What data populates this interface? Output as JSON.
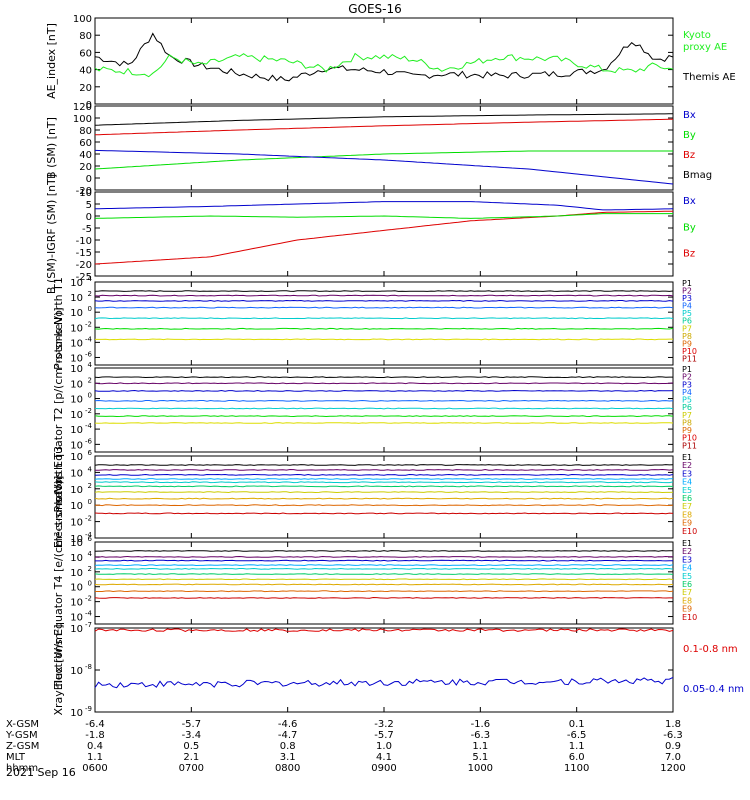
{
  "title": "GOES-16",
  "date": "2021 Sep 16",
  "colors": {
    "black": "#000000",
    "red": "#dd0000",
    "green": "#00dd00",
    "blue": "#0000cc",
    "lime": "#33dd33",
    "proxy": "#22ee22"
  },
  "chart_data": [
    {
      "type": "line",
      "id": "ae",
      "ylabel": "AE_index [nT]",
      "ylim": [
        0,
        100
      ],
      "ticks": [
        0,
        20,
        40,
        60,
        80,
        100
      ],
      "tick_labels": [
        "0",
        "20",
        "40",
        "60",
        "80",
        "100"
      ],
      "legend": [
        {
          "label": "Kyoto",
          "color": "#22ee22"
        },
        {
          "label": "proxy AE",
          "color": "#22ee22"
        },
        {
          "label": "Themis AE",
          "color": "#000000"
        }
      ],
      "x": [
        0,
        0.06,
        0.1,
        0.13,
        0.18,
        0.25,
        0.33,
        0.4,
        0.45,
        0.5,
        0.55,
        0.6,
        0.7,
        0.8,
        0.88,
        0.93,
        0.97,
        1.0
      ],
      "series": [
        {
          "name": "Themis AE",
          "color": "#000000",
          "values": [
            55,
            45,
            82,
            55,
            45,
            35,
            28,
            42,
            40,
            38,
            32,
            35,
            33,
            35,
            40,
            75,
            52,
            55
          ]
        },
        {
          "name": "Kyoto proxy AE",
          "color": "#22ee22",
          "values": [
            40,
            38,
            35,
            55,
            45,
            55,
            50,
            40,
            55,
            55,
            52,
            40,
            55,
            52,
            40,
            38,
            45,
            40
          ]
        }
      ]
    },
    {
      "type": "line",
      "id": "bsm",
      "ylabel": "B (SM) [nT]",
      "ylim": [
        -20,
        120
      ],
      "ticks": [
        -20,
        0,
        20,
        40,
        60,
        80,
        100,
        120
      ],
      "tick_labels": [
        "-20",
        "0",
        "20",
        "40",
        "60",
        "80",
        "100",
        "120"
      ],
      "legend": [
        {
          "label": "Bx",
          "color": "#0000cc"
        },
        {
          "label": "By",
          "color": "#00dd00"
        },
        {
          "label": "Bz",
          "color": "#dd0000"
        },
        {
          "label": "Bmag",
          "color": "#000000"
        }
      ],
      "x": [
        0,
        0.25,
        0.5,
        0.75,
        1.0
      ],
      "series": [
        {
          "name": "Bmag",
          "color": "#000000",
          "values": [
            88,
            96,
            102,
            105,
            107
          ]
        },
        {
          "name": "Bz",
          "color": "#dd0000",
          "values": [
            72,
            80,
            87,
            93,
            98
          ]
        },
        {
          "name": "By",
          "color": "#00dd00",
          "values": [
            15,
            30,
            40,
            45,
            45
          ]
        },
        {
          "name": "Bx",
          "color": "#0000cc",
          "values": [
            46,
            40,
            30,
            15,
            -10
          ]
        }
      ]
    },
    {
      "type": "line",
      "id": "bigrf",
      "ylabel": "B (SM)-IGRF (SM) [nT]",
      "ylim": [
        -25,
        10
      ],
      "ticks": [
        -25,
        -20,
        -15,
        -10,
        -5,
        0,
        5,
        10
      ],
      "tick_labels": [
        "-25",
        "-20",
        "-15",
        "-10",
        "-5",
        "0",
        "5",
        "10"
      ],
      "legend": [
        {
          "label": "Bx",
          "color": "#0000cc"
        },
        {
          "label": "By",
          "color": "#00dd00"
        },
        {
          "label": "Bz",
          "color": "#dd0000"
        }
      ],
      "x": [
        0,
        0.2,
        0.35,
        0.5,
        0.65,
        0.8,
        0.88,
        1.0
      ],
      "series": [
        {
          "name": "Bz",
          "color": "#dd0000",
          "values": [
            -20,
            -17,
            -10,
            -6,
            -2,
            0,
            1.5,
            2
          ]
        },
        {
          "name": "By",
          "color": "#00dd00",
          "values": [
            -1,
            0,
            -0.5,
            0,
            -1,
            0,
            1,
            1
          ]
        },
        {
          "name": "Bx",
          "color": "#0000cc",
          "values": [
            3,
            4,
            5,
            6,
            6,
            4.5,
            2.5,
            3
          ]
        }
      ]
    },
    {
      "type": "line",
      "id": "pn",
      "log": true,
      "ylabel": "Protons North T1",
      "unit": "",
      "ylim_exp": [
        -7,
        4
      ],
      "tick_exps": [
        -6,
        -4,
        -2,
        0,
        2,
        4
      ],
      "tick_labels": [
        "10",
        "10",
        "10",
        "10",
        "10",
        "10"
      ],
      "tick_sups": [
        "-6",
        "-4",
        "-2",
        "0",
        "2",
        "4"
      ],
      "legend": [
        {
          "label": "P1",
          "color": "#000000"
        },
        {
          "label": "P2",
          "color": "#660066"
        },
        {
          "label": "P3",
          "color": "#0000cc"
        },
        {
          "label": "P4",
          "color": "#1166ff"
        },
        {
          "label": "P5",
          "color": "#00cccc"
        },
        {
          "label": "P6",
          "color": "#00cc99"
        },
        {
          "label": "P7",
          "color": "#cccc00"
        },
        {
          "label": "P8",
          "color": "#ccaa00"
        },
        {
          "label": "P9",
          "color": "#dd6600"
        },
        {
          "label": "P10",
          "color": "#dd0000"
        },
        {
          "label": "P11",
          "color": "#aa0000"
        }
      ],
      "series": [
        {
          "name": "P1",
          "color": "#000000",
          "exp": 2.8
        },
        {
          "name": "P2",
          "color": "#660066",
          "exp": 2.2
        },
        {
          "name": "P3",
          "color": "#0000cc",
          "exp": 1.5
        },
        {
          "name": "P4",
          "color": "#1166ff",
          "exp": 0.6
        },
        {
          "name": "P5",
          "color": "#00cccc",
          "exp": -0.8
        },
        {
          "name": "P6",
          "color": "#00dd00",
          "exp": -2.2
        },
        {
          "name": "P7",
          "color": "#dddd00",
          "exp": -3.6
        }
      ]
    },
    {
      "type": "line",
      "id": "pe",
      "log": true,
      "ylabel": "Protons Equator T2 [p/(cm²-s-sr-keV)]",
      "ylim_exp": [
        -7,
        4
      ],
      "tick_exps": [
        -6,
        -4,
        -2,
        0,
        2,
        4
      ],
      "tick_labels": [
        "10",
        "10",
        "10",
        "10",
        "10",
        "10"
      ],
      "tick_sups": [
        "-6",
        "-4",
        "-2",
        "0",
        "2",
        "4"
      ],
      "legend": [
        {
          "label": "P1",
          "color": "#000000"
        },
        {
          "label": "P2",
          "color": "#660066"
        },
        {
          "label": "P3",
          "color": "#0000cc"
        },
        {
          "label": "P4",
          "color": "#1166ff"
        },
        {
          "label": "P5",
          "color": "#00cccc"
        },
        {
          "label": "P6",
          "color": "#00cc99"
        },
        {
          "label": "P7",
          "color": "#cccc00"
        },
        {
          "label": "P8",
          "color": "#ccaa00"
        },
        {
          "label": "P9",
          "color": "#dd6600"
        },
        {
          "label": "P10",
          "color": "#dd0000"
        },
        {
          "label": "P11",
          "color": "#aa0000"
        }
      ],
      "series": [
        {
          "name": "P1",
          "color": "#000000",
          "exp": 2.8
        },
        {
          "name": "P2",
          "color": "#660066",
          "exp": 2.0
        },
        {
          "name": "P3",
          "color": "#0000cc",
          "exp": 1.0
        },
        {
          "name": "P4",
          "color": "#1166ff",
          "exp": -0.3
        },
        {
          "name": "P5",
          "color": "#00cccc",
          "exp": -1.3
        },
        {
          "name": "P6",
          "color": "#00dd00",
          "exp": -2.3
        },
        {
          "name": "P7",
          "color": "#dddd00",
          "exp": -3.2
        }
      ]
    },
    {
      "type": "line",
      "id": "en",
      "log": true,
      "ylabel": "Electrons North T3",
      "ylim_exp": [
        -4,
        6
      ],
      "tick_exps": [
        -4,
        -2,
        0,
        2,
        4,
        6
      ],
      "tick_labels": [
        "10",
        "10",
        "10",
        "10",
        "10",
        "10"
      ],
      "tick_sups": [
        "-4",
        "-2",
        "0",
        "2",
        "4",
        "6"
      ],
      "legend": [
        {
          "label": "E1",
          "color": "#000000"
        },
        {
          "label": "E2",
          "color": "#660066"
        },
        {
          "label": "E3",
          "color": "#0000cc"
        },
        {
          "label": "E4",
          "color": "#00aaff"
        },
        {
          "label": "E5",
          "color": "#00cccc"
        },
        {
          "label": "E6",
          "color": "#00cc66"
        },
        {
          "label": "E7",
          "color": "#cccc00"
        },
        {
          "label": "E8",
          "color": "#ddaa00"
        },
        {
          "label": "E9",
          "color": "#dd6600"
        },
        {
          "label": "E10",
          "color": "#cc0000"
        }
      ],
      "series": [
        {
          "name": "E1",
          "color": "#000000",
          "exp": 4.9
        },
        {
          "name": "E2",
          "color": "#660066",
          "exp": 4.3
        },
        {
          "name": "E3",
          "color": "#0000cc",
          "exp": 3.7
        },
        {
          "name": "E4",
          "color": "#00aaff",
          "exp": 3.2
        },
        {
          "name": "E5",
          "color": "#00cccc",
          "exp": 2.8
        },
        {
          "name": "E6",
          "color": "#00cc66",
          "exp": 2.3
        },
        {
          "name": "E7",
          "color": "#cccc00",
          "exp": 1.6
        },
        {
          "name": "E8",
          "color": "#ddaa00",
          "exp": 0.8
        },
        {
          "name": "E9",
          "color": "#dd6600",
          "exp": 0.0
        },
        {
          "name": "E10",
          "color": "#cc0000",
          "exp": -1.0
        }
      ]
    },
    {
      "type": "line",
      "id": "ee",
      "log": true,
      "ylabel": "Electrons Equator T4 [e/(cm²-s-sr-keV)]",
      "ylim_exp": [
        -5,
        6
      ],
      "tick_exps": [
        -4,
        -2,
        0,
        2,
        4,
        6
      ],
      "tick_labels": [
        "10",
        "10",
        "10",
        "10",
        "10",
        "10"
      ],
      "tick_sups": [
        "-4",
        "-2",
        "0",
        "2",
        "4",
        "6"
      ],
      "legend": [
        {
          "label": "E1",
          "color": "#000000"
        },
        {
          "label": "E2",
          "color": "#660066"
        },
        {
          "label": "E3",
          "color": "#0000cc"
        },
        {
          "label": "E4",
          "color": "#00aaff"
        },
        {
          "label": "E5",
          "color": "#00cccc"
        },
        {
          "label": "E6",
          "color": "#00cc66"
        },
        {
          "label": "E7",
          "color": "#cccc00"
        },
        {
          "label": "E8",
          "color": "#ddaa00"
        },
        {
          "label": "E9",
          "color": "#dd6600"
        },
        {
          "label": "E10",
          "color": "#cc0000"
        }
      ],
      "series": [
        {
          "name": "E1",
          "color": "#000000",
          "exp": 4.8
        },
        {
          "name": "E2",
          "color": "#660066",
          "exp": 4.0
        },
        {
          "name": "E3",
          "color": "#0000cc",
          "exp": 3.5
        },
        {
          "name": "E4",
          "color": "#00aaff",
          "exp": 2.9
        },
        {
          "name": "E5",
          "color": "#00cccc",
          "exp": 2.4
        },
        {
          "name": "E6",
          "color": "#00cc66",
          "exp": 1.7
        },
        {
          "name": "E7",
          "color": "#cccc00",
          "exp": 1.0
        },
        {
          "name": "E8",
          "color": "#ddaa00",
          "exp": 0.3
        },
        {
          "name": "E9",
          "color": "#dd6600",
          "exp": -0.6
        },
        {
          "name": "E10",
          "color": "#cc0000",
          "exp": -1.5
        }
      ]
    },
    {
      "type": "line",
      "id": "xray",
      "log": true,
      "ylabel": "Xray flux [W/m²]",
      "ylim_exp": [
        -9,
        -7
      ],
      "tick_exps": [
        -9,
        -8,
        -7
      ],
      "tick_labels": [
        "10",
        "10",
        "10"
      ],
      "tick_sups": [
        "-9",
        "-8",
        "-7"
      ],
      "legend": [
        {
          "label": "0.1-0.8 nm",
          "color": "#dd0000"
        },
        {
          "label": "0.05-0.4 nm",
          "color": "#0000cc"
        }
      ],
      "series": [
        {
          "name": "0.1-0.8 nm",
          "color": "#dd0000",
          "exp": -7.05
        },
        {
          "name": "0.05-0.4 nm",
          "color": "#0000cc",
          "exp": -8.35
        }
      ]
    }
  ],
  "xaxis": {
    "row_labels": [
      "X-GSM",
      "Y-GSM",
      "Z-GSM",
      "MLT",
      "hhmm"
    ],
    "columns": [
      [
        "-6.4",
        "-1.8",
        "0.4",
        "1.1",
        "0600"
      ],
      [
        "-5.7",
        "-3.4",
        "0.5",
        "2.1",
        "0700"
      ],
      [
        "-4.6",
        "-4.7",
        "0.8",
        "3.1",
        "0800"
      ],
      [
        "-3.2",
        "-5.7",
        "1.0",
        "4.1",
        "0900"
      ],
      [
        "-1.6",
        "-6.3",
        "1.1",
        "5.1",
        "1000"
      ],
      [
        "0.1",
        "-6.5",
        "1.1",
        "6.0",
        "1100"
      ],
      [
        "1.8",
        "-6.3",
        "0.9",
        "7.0",
        "1200"
      ]
    ]
  }
}
